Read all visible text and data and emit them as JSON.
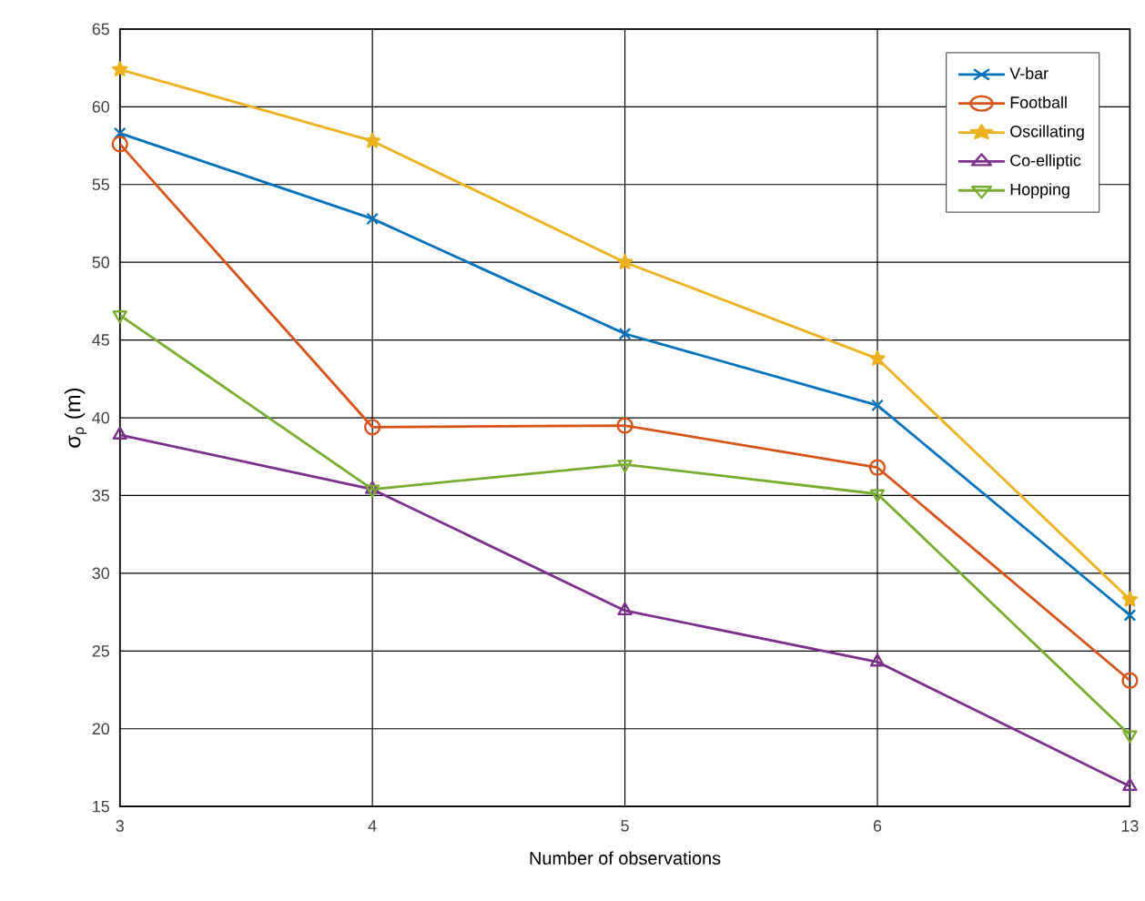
{
  "chart_data": {
    "type": "line",
    "xlabel": "Number of observations",
    "ylabel": "σ$_{ρ}$ (m)",
    "categories": [
      "3",
      "4",
      "5",
      "6",
      "13"
    ],
    "series": [
      {
        "name": "V-bar",
        "color": "#0072bd",
        "marker": "cross",
        "values": [
          58.3,
          52.8,
          45.4,
          40.8,
          27.3
        ]
      },
      {
        "name": "Football",
        "color": "#d95319",
        "marker": "circle",
        "values": [
          57.6,
          39.4,
          39.5,
          36.8,
          23.1
        ]
      },
      {
        "name": "Oscillating",
        "color": "#edb120",
        "marker": "star",
        "values": [
          62.4,
          57.8,
          50.0,
          43.8,
          28.3
        ]
      },
      {
        "name": "Co-elliptic",
        "color": "#7e2f8e",
        "marker": "triangle",
        "values": [
          38.9,
          35.4,
          27.6,
          24.3,
          16.3
        ]
      },
      {
        "name": "Hopping",
        "color": "#77ac30",
        "marker": "triangle-down",
        "values": [
          46.6,
          35.4,
          37.0,
          35.1,
          19.6
        ]
      }
    ],
    "ylim": [
      15,
      65
    ],
    "yticks": [
      15,
      20,
      25,
      30,
      35,
      40,
      45,
      50,
      55,
      60,
      65
    ],
    "grid": true,
    "legend": "top right",
    "line_style": "solid"
  }
}
